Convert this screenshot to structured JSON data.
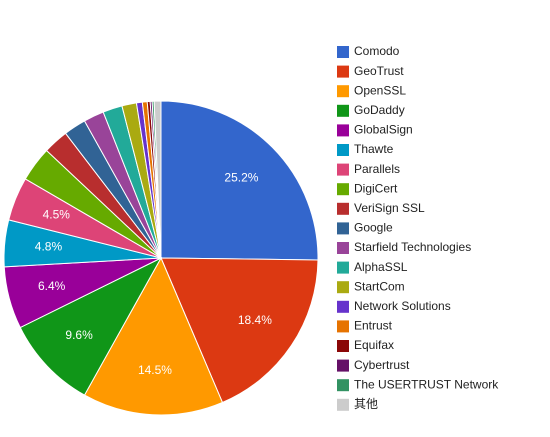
{
  "chart_data": {
    "type": "pie",
    "categories": [
      "Comodo",
      "GeoTrust",
      "OpenSSL",
      "GoDaddy",
      "GlobalSign",
      "Thawte",
      "Parallels",
      "DigiCert",
      "VeriSign SSL",
      "Google",
      "Starfield Technologies",
      "AlphaSSL",
      "StartCom",
      "Network Solutions",
      "Entrust",
      "Equifax",
      "Cybertrust",
      "The USERTRUST Network",
      "其他"
    ],
    "values": [
      25.2,
      18.4,
      14.5,
      9.6,
      6.4,
      4.8,
      4.5,
      3.6,
      2.6,
      2.3,
      2.1,
      2.0,
      1.5,
      0.6,
      0.5,
      0.3,
      0.2,
      0.2,
      0.7
    ],
    "value_labels": [
      "25.2%",
      "18.4%",
      "14.5%",
      "9.6%",
      "6.4%",
      "4.8%",
      "4.5%",
      null,
      null,
      null,
      null,
      null,
      null,
      null,
      null,
      null,
      null,
      null,
      null
    ],
    "colors": [
      "#3366cc",
      "#dc3912",
      "#ff9900",
      "#109618",
      "#990099",
      "#0099c6",
      "#dd4477",
      "#66aa00",
      "#b82e2e",
      "#316395",
      "#994499",
      "#22aa99",
      "#aaaa11",
      "#6633cc",
      "#e67300",
      "#8b0707",
      "#651067",
      "#329262",
      "#cccccc"
    ],
    "legend": "right"
  }
}
